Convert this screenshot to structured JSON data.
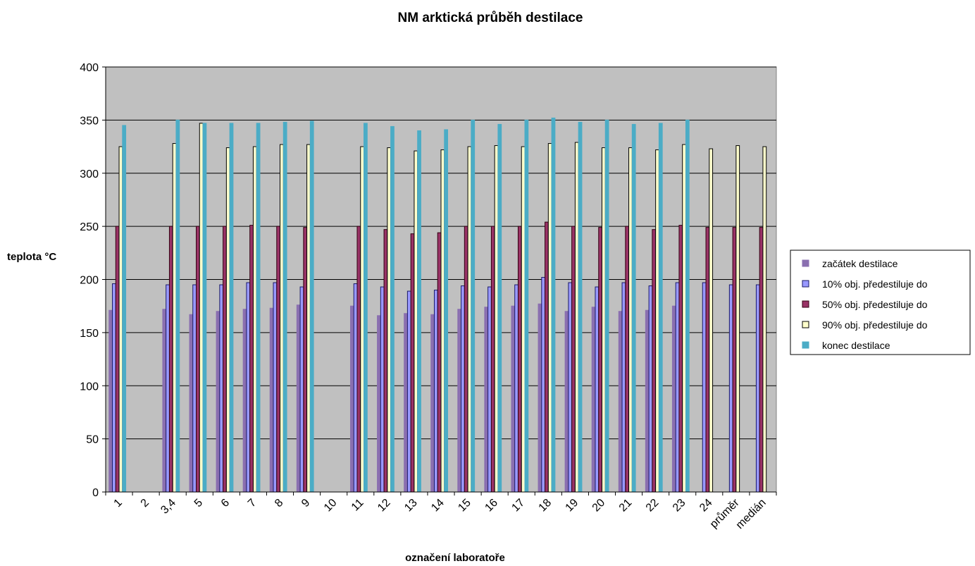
{
  "chart_data": {
    "type": "bar",
    "title": "NM arktická průběh destilace",
    "xlabel": "označení laboratoře",
    "ylabel": "teplota °C",
    "ylim": [
      0,
      400
    ],
    "yticks": [
      0,
      50,
      100,
      150,
      200,
      250,
      300,
      350,
      400
    ],
    "grid": true,
    "legend_position": "right",
    "categories": [
      "1",
      "2",
      "3,4",
      "5",
      "6",
      "7",
      "8",
      "9",
      "10",
      "11",
      "12",
      "13",
      "14",
      "15",
      "16",
      "17",
      "18",
      "19",
      "20",
      "21",
      "22",
      "23",
      "24",
      "průměr",
      "medián"
    ],
    "series": [
      {
        "name": "začátek destilace",
        "color": "#8a6fb0",
        "stroke": "#8a6fb0",
        "values": [
          171,
          null,
          172,
          167,
          170,
          172,
          173,
          176,
          null,
          175,
          166,
          168,
          167,
          172,
          174,
          175,
          177,
          170,
          174,
          170,
          171,
          175,
          null,
          null,
          null
        ]
      },
      {
        "name": "10% obj. předestiluje do",
        "color": "#9999ff",
        "stroke": "#1a1a66",
        "values": [
          196,
          null,
          195,
          195,
          195,
          197,
          197,
          193,
          null,
          196,
          193,
          189,
          190,
          194,
          193,
          195,
          202,
          197,
          193,
          197,
          194,
          197,
          197,
          195,
          195
        ]
      },
      {
        "name": "50% obj. předestiluje do",
        "color": "#993366",
        "stroke": "#330011",
        "values": [
          250,
          null,
          250,
          250,
          250,
          251,
          250,
          249,
          null,
          250,
          247,
          243,
          244,
          250,
          250,
          250,
          254,
          250,
          249,
          250,
          247,
          251,
          249,
          249,
          249
        ]
      },
      {
        "name": "90% obj. předestiluje do",
        "color": "#ffffcc",
        "stroke": "#000000",
        "values": [
          325,
          null,
          328,
          347,
          324,
          325,
          327,
          327,
          null,
          325,
          324,
          321,
          322,
          325,
          326,
          325,
          328,
          329,
          324,
          324,
          322,
          327,
          323,
          326,
          325
        ]
      },
      {
        "name": "konec destilace",
        "color": "#4bacc6",
        "stroke": "#4bacc6",
        "values": [
          345,
          null,
          350,
          347,
          347,
          347,
          348,
          349,
          null,
          347,
          344,
          340,
          341,
          350,
          346,
          350,
          352,
          348,
          350,
          346,
          347,
          350,
          null,
          null,
          null
        ]
      }
    ]
  }
}
